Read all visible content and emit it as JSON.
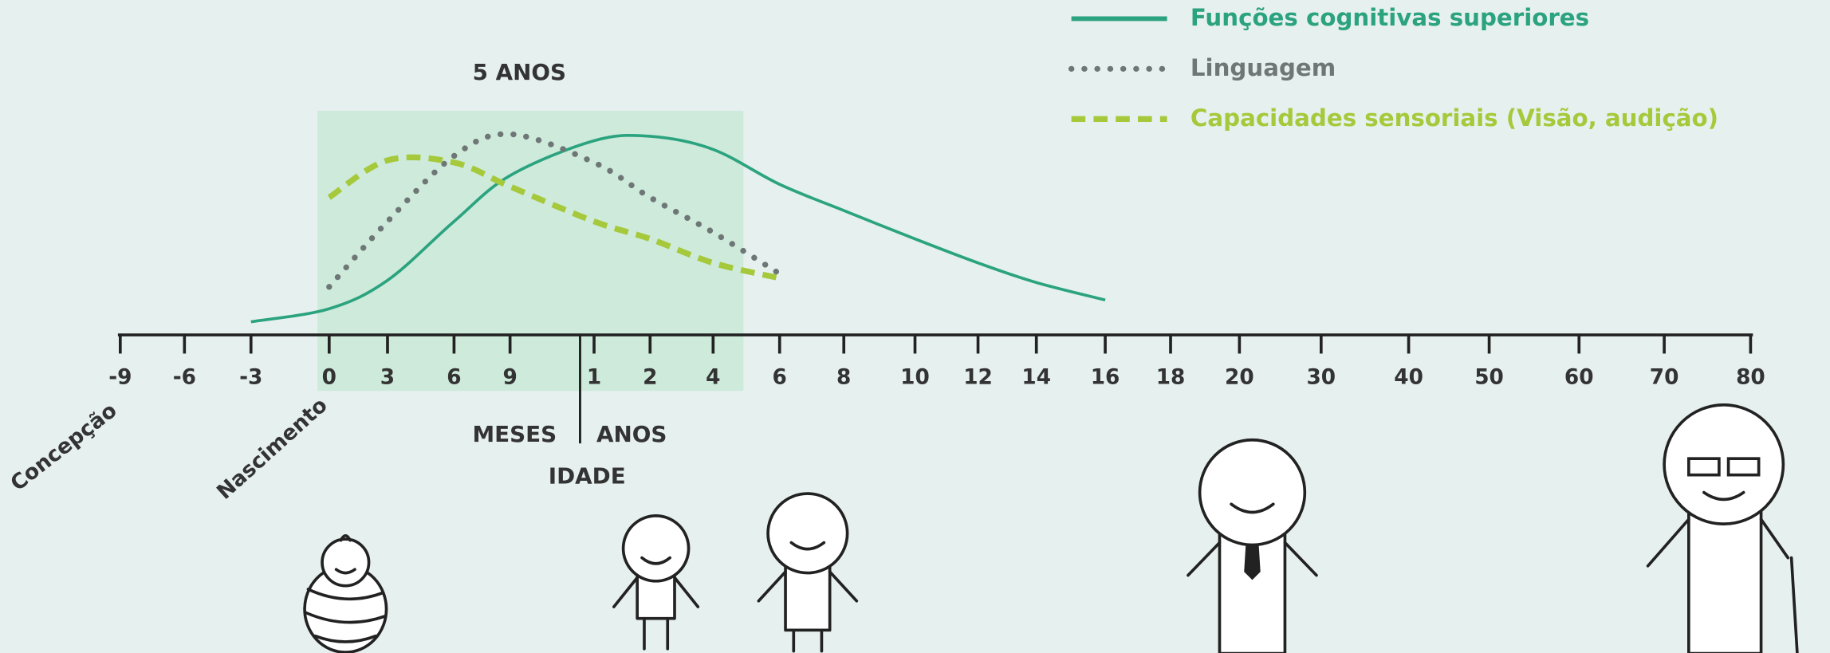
{
  "chart_data": {
    "type": "line",
    "categories": [
      "-9",
      "-6",
      "-3",
      "0",
      "3",
      "6",
      "9",
      "1",
      "2",
      "4",
      "6",
      "8",
      "10",
      "12",
      "14",
      "16",
      "18",
      "20",
      "30",
      "40",
      "50",
      "60",
      "70",
      "80"
    ],
    "series": [
      {
        "name": "Funções cognitivas superiores",
        "color": "#2ba37f",
        "dash": "solid",
        "values": [
          null,
          null,
          6,
          12,
          25,
          52,
          73,
          89,
          91,
          85,
          69,
          57,
          44,
          33,
          24,
          16,
          null,
          null,
          null,
          null,
          null,
          null,
          null,
          null
        ]
      },
      {
        "name": "Linguagem",
        "color": "#6e7775",
        "dash": "dotted",
        "values": [
          null,
          null,
          null,
          22,
          52,
          82,
          92,
          79,
          63,
          47,
          28,
          null,
          null,
          null,
          null,
          null,
          null,
          null,
          null,
          null,
          null,
          null,
          null,
          null
        ]
      },
      {
        "name": "Capacidades sensoriais (Visão, audição)",
        "color": "#a5c93a",
        "dash": "dashed",
        "values": [
          null,
          null,
          null,
          63,
          80,
          79,
          68,
          52,
          44,
          33,
          26,
          null,
          null,
          null,
          null,
          null,
          null,
          null,
          null,
          null,
          null,
          null,
          null,
          null
        ]
      }
    ],
    "ylim": [
      0,
      100
    ],
    "annotations": [
      "5 ANOS",
      "MESES",
      "ANOS",
      "IDADE",
      "Concepção",
      "Nascimento"
    ]
  }
}
